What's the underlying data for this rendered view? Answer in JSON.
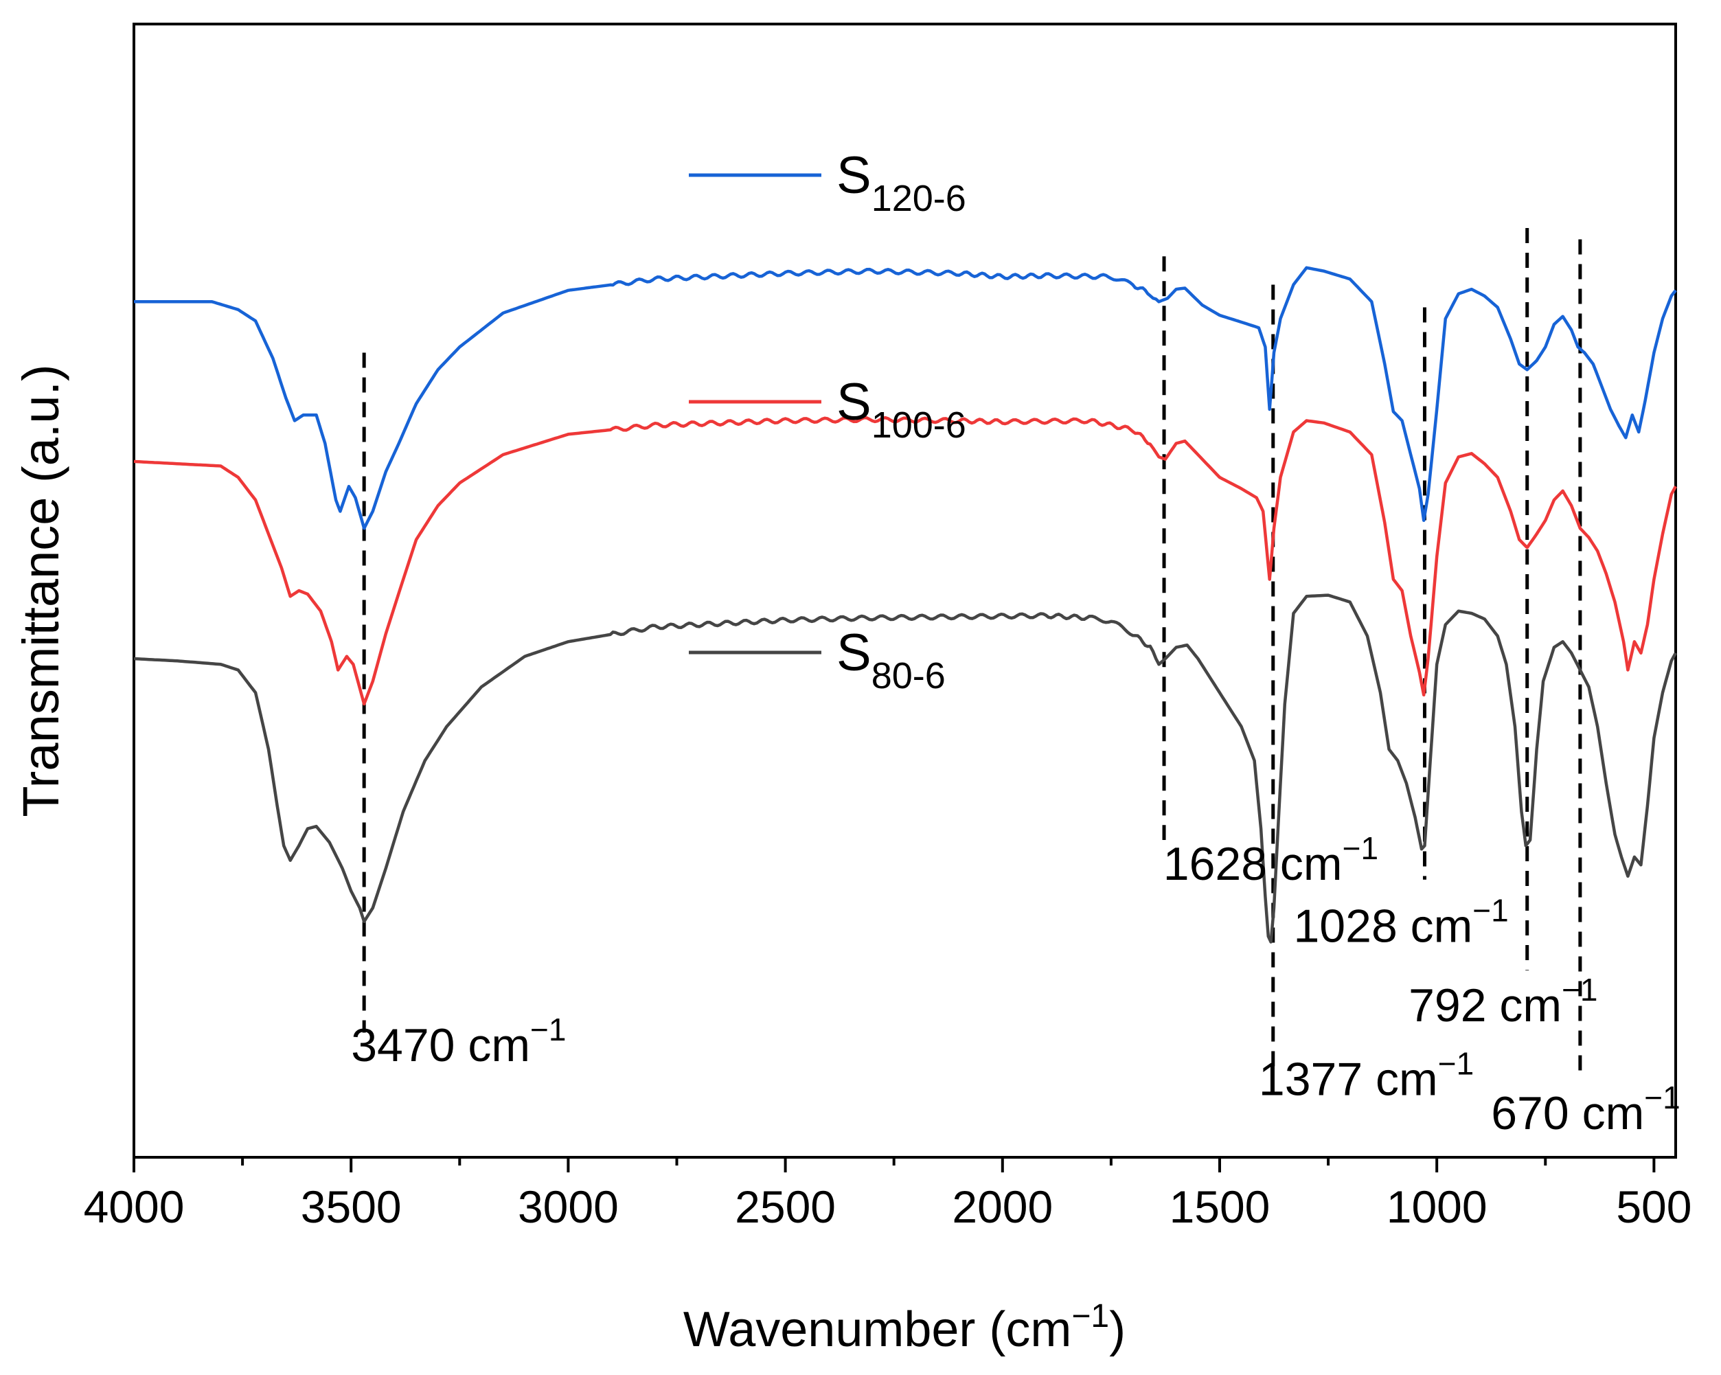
{
  "chart_data": {
    "type": "line",
    "title": "",
    "xlabel": "Wavenumber (cm⁻¹)",
    "xlabel_main": "Wavenumber (cm",
    "xlabel_sup": "−1",
    "xlabel_close": ")",
    "ylabel": "Transmittance (a.u.)",
    "xlim": [
      4000,
      450
    ],
    "x_reversed": true,
    "ylim": [
      0,
      10
    ],
    "y_ticks_shown": false,
    "grid": false,
    "x_ticks": [
      4000,
      3500,
      3000,
      2500,
      2000,
      1500,
      1000,
      500
    ],
    "x_tick_labels": [
      "4000",
      "3500",
      "3000",
      "2500",
      "2000",
      "1500",
      "1000",
      "500"
    ],
    "legend_position": "top-center",
    "series": [
      {
        "name": "S120-6",
        "label_main": "S",
        "label_sub": "120-6",
        "color": "#1763d6",
        "points": [
          [
            4000,
            7.55
          ],
          [
            3900,
            7.55
          ],
          [
            3820,
            7.55
          ],
          [
            3760,
            7.48
          ],
          [
            3720,
            7.38
          ],
          [
            3680,
            7.05
          ],
          [
            3650,
            6.7
          ],
          [
            3630,
            6.5
          ],
          [
            3610,
            6.55
          ],
          [
            3580,
            6.55
          ],
          [
            3560,
            6.3
          ],
          [
            3535,
            5.8
          ],
          [
            3525,
            5.7
          ],
          [
            3505,
            5.92
          ],
          [
            3490,
            5.82
          ],
          [
            3470,
            5.55
          ],
          [
            3450,
            5.7
          ],
          [
            3420,
            6.05
          ],
          [
            3390,
            6.3
          ],
          [
            3350,
            6.65
          ],
          [
            3300,
            6.95
          ],
          [
            3250,
            7.15
          ],
          [
            3150,
            7.45
          ],
          [
            3000,
            7.65
          ],
          [
            2800,
            7.75
          ],
          [
            2500,
            7.8
          ],
          [
            2300,
            7.82
          ],
          [
            2100,
            7.8
          ],
          [
            2000,
            7.77
          ],
          [
            1900,
            7.78
          ],
          [
            1750,
            7.77
          ],
          [
            1700,
            7.7
          ],
          [
            1660,
            7.62
          ],
          [
            1640,
            7.55
          ],
          [
            1620,
            7.58
          ],
          [
            1600,
            7.66
          ],
          [
            1580,
            7.67
          ],
          [
            1540,
            7.52
          ],
          [
            1500,
            7.43
          ],
          [
            1450,
            7.37
          ],
          [
            1410,
            7.32
          ],
          [
            1395,
            7.15
          ],
          [
            1385,
            6.6
          ],
          [
            1375,
            7.1
          ],
          [
            1360,
            7.4
          ],
          [
            1330,
            7.7
          ],
          [
            1300,
            7.85
          ],
          [
            1260,
            7.82
          ],
          [
            1200,
            7.75
          ],
          [
            1150,
            7.55
          ],
          [
            1120,
            7.0
          ],
          [
            1100,
            6.58
          ],
          [
            1080,
            6.5
          ],
          [
            1060,
            6.2
          ],
          [
            1040,
            5.9
          ],
          [
            1030,
            5.62
          ],
          [
            1020,
            5.85
          ],
          [
            1000,
            6.6
          ],
          [
            980,
            7.4
          ],
          [
            950,
            7.62
          ],
          [
            920,
            7.66
          ],
          [
            890,
            7.6
          ],
          [
            860,
            7.5
          ],
          [
            830,
            7.22
          ],
          [
            810,
            7.0
          ],
          [
            792,
            6.95
          ],
          [
            770,
            7.03
          ],
          [
            750,
            7.15
          ],
          [
            730,
            7.35
          ],
          [
            710,
            7.42
          ],
          [
            690,
            7.3
          ],
          [
            675,
            7.15
          ],
          [
            660,
            7.1
          ],
          [
            640,
            7.0
          ],
          [
            620,
            6.8
          ],
          [
            600,
            6.6
          ],
          [
            580,
            6.45
          ],
          [
            565,
            6.35
          ],
          [
            550,
            6.55
          ],
          [
            535,
            6.4
          ],
          [
            520,
            6.68
          ],
          [
            500,
            7.1
          ],
          [
            480,
            7.4
          ],
          [
            460,
            7.6
          ],
          [
            450,
            7.65
          ]
        ]
      },
      {
        "name": "S100-6",
        "label_main": "S",
        "label_sub": "100-6",
        "color": "#ee3838",
        "points": [
          [
            4000,
            6.14
          ],
          [
            3900,
            6.12
          ],
          [
            3800,
            6.1
          ],
          [
            3760,
            6.0
          ],
          [
            3720,
            5.8
          ],
          [
            3690,
            5.5
          ],
          [
            3660,
            5.2
          ],
          [
            3640,
            4.95
          ],
          [
            3620,
            5.0
          ],
          [
            3600,
            4.97
          ],
          [
            3570,
            4.82
          ],
          [
            3545,
            4.55
          ],
          [
            3530,
            4.3
          ],
          [
            3510,
            4.42
          ],
          [
            3495,
            4.35
          ],
          [
            3470,
            4.0
          ],
          [
            3450,
            4.2
          ],
          [
            3420,
            4.62
          ],
          [
            3390,
            4.98
          ],
          [
            3350,
            5.45
          ],
          [
            3300,
            5.75
          ],
          [
            3250,
            5.95
          ],
          [
            3150,
            6.2
          ],
          [
            3000,
            6.38
          ],
          [
            2800,
            6.46
          ],
          [
            2500,
            6.5
          ],
          [
            2300,
            6.51
          ],
          [
            2100,
            6.5
          ],
          [
            2000,
            6.49
          ],
          [
            1800,
            6.5
          ],
          [
            1700,
            6.42
          ],
          [
            1660,
            6.3
          ],
          [
            1640,
            6.18
          ],
          [
            1625,
            6.16
          ],
          [
            1600,
            6.3
          ],
          [
            1580,
            6.32
          ],
          [
            1550,
            6.2
          ],
          [
            1500,
            6.0
          ],
          [
            1450,
            5.9
          ],
          [
            1415,
            5.82
          ],
          [
            1400,
            5.7
          ],
          [
            1385,
            5.1
          ],
          [
            1375,
            5.55
          ],
          [
            1360,
            6.0
          ],
          [
            1330,
            6.4
          ],
          [
            1300,
            6.5
          ],
          [
            1260,
            6.48
          ],
          [
            1200,
            6.4
          ],
          [
            1150,
            6.2
          ],
          [
            1120,
            5.6
          ],
          [
            1100,
            5.1
          ],
          [
            1080,
            5.0
          ],
          [
            1060,
            4.6
          ],
          [
            1040,
            4.28
          ],
          [
            1030,
            4.08
          ],
          [
            1020,
            4.4
          ],
          [
            1000,
            5.3
          ],
          [
            980,
            5.95
          ],
          [
            950,
            6.18
          ],
          [
            920,
            6.21
          ],
          [
            890,
            6.12
          ],
          [
            860,
            6.0
          ],
          [
            830,
            5.7
          ],
          [
            810,
            5.45
          ],
          [
            792,
            5.38
          ],
          [
            770,
            5.5
          ],
          [
            750,
            5.62
          ],
          [
            730,
            5.8
          ],
          [
            710,
            5.88
          ],
          [
            690,
            5.75
          ],
          [
            670,
            5.55
          ],
          [
            650,
            5.47
          ],
          [
            630,
            5.35
          ],
          [
            610,
            5.15
          ],
          [
            590,
            4.9
          ],
          [
            570,
            4.55
          ],
          [
            560,
            4.3
          ],
          [
            545,
            4.55
          ],
          [
            530,
            4.45
          ],
          [
            515,
            4.7
          ],
          [
            500,
            5.1
          ],
          [
            480,
            5.5
          ],
          [
            460,
            5.85
          ],
          [
            450,
            5.92
          ]
        ]
      },
      {
        "name": "S80-6",
        "label_main": "S",
        "label_sub": "80-6",
        "color": "#454545",
        "points": [
          [
            4000,
            4.4
          ],
          [
            3900,
            4.38
          ],
          [
            3800,
            4.35
          ],
          [
            3760,
            4.3
          ],
          [
            3720,
            4.1
          ],
          [
            3690,
            3.6
          ],
          [
            3670,
            3.1
          ],
          [
            3655,
            2.75
          ],
          [
            3640,
            2.62
          ],
          [
            3620,
            2.75
          ],
          [
            3600,
            2.9
          ],
          [
            3580,
            2.92
          ],
          [
            3550,
            2.78
          ],
          [
            3520,
            2.55
          ],
          [
            3500,
            2.35
          ],
          [
            3480,
            2.2
          ],
          [
            3470,
            2.08
          ],
          [
            3450,
            2.2
          ],
          [
            3420,
            2.55
          ],
          [
            3380,
            3.05
          ],
          [
            3330,
            3.5
          ],
          [
            3280,
            3.8
          ],
          [
            3200,
            4.15
          ],
          [
            3100,
            4.42
          ],
          [
            3000,
            4.55
          ],
          [
            2800,
            4.68
          ],
          [
            2500,
            4.74
          ],
          [
            2300,
            4.76
          ],
          [
            2100,
            4.77
          ],
          [
            1900,
            4.78
          ],
          [
            1800,
            4.76
          ],
          [
            1750,
            4.73
          ],
          [
            1700,
            4.62
          ],
          [
            1660,
            4.5
          ],
          [
            1640,
            4.35
          ],
          [
            1625,
            4.4
          ],
          [
            1600,
            4.5
          ],
          [
            1575,
            4.52
          ],
          [
            1550,
            4.4
          ],
          [
            1500,
            4.1
          ],
          [
            1450,
            3.8
          ],
          [
            1420,
            3.5
          ],
          [
            1405,
            2.9
          ],
          [
            1395,
            2.3
          ],
          [
            1388,
            1.95
          ],
          [
            1382,
            1.9
          ],
          [
            1375,
            2.2
          ],
          [
            1365,
            2.95
          ],
          [
            1350,
            4.0
          ],
          [
            1330,
            4.8
          ],
          [
            1300,
            4.95
          ],
          [
            1250,
            4.96
          ],
          [
            1200,
            4.9
          ],
          [
            1160,
            4.6
          ],
          [
            1130,
            4.1
          ],
          [
            1110,
            3.6
          ],
          [
            1090,
            3.5
          ],
          [
            1070,
            3.3
          ],
          [
            1050,
            3.0
          ],
          [
            1035,
            2.72
          ],
          [
            1028,
            2.75
          ],
          [
            1015,
            3.5
          ],
          [
            1000,
            4.35
          ],
          [
            980,
            4.7
          ],
          [
            950,
            4.82
          ],
          [
            920,
            4.8
          ],
          [
            890,
            4.75
          ],
          [
            860,
            4.6
          ],
          [
            840,
            4.35
          ],
          [
            820,
            3.8
          ],
          [
            805,
            3.05
          ],
          [
            795,
            2.75
          ],
          [
            785,
            2.8
          ],
          [
            770,
            3.6
          ],
          [
            755,
            4.2
          ],
          [
            730,
            4.5
          ],
          [
            710,
            4.55
          ],
          [
            690,
            4.45
          ],
          [
            670,
            4.3
          ],
          [
            650,
            4.15
          ],
          [
            630,
            3.8
          ],
          [
            610,
            3.3
          ],
          [
            590,
            2.85
          ],
          [
            575,
            2.65
          ],
          [
            560,
            2.48
          ],
          [
            545,
            2.65
          ],
          [
            530,
            2.58
          ],
          [
            515,
            3.1
          ],
          [
            500,
            3.7
          ],
          [
            480,
            4.1
          ],
          [
            460,
            4.38
          ],
          [
            450,
            4.45
          ]
        ]
      }
    ],
    "annotations": [
      {
        "x": 3470,
        "y_top": 7.1,
        "y_bottom": 1.1,
        "label": "3470 cm",
        "sup": "−1",
        "label_x": 3500,
        "label_y": 0.85
      },
      {
        "x": 1628,
        "y_top": 7.95,
        "y_bottom": 2.8,
        "label": "1628 cm",
        "sup": "−1",
        "label_x": 1630,
        "label_y": 2.45
      },
      {
        "x": 1377,
        "y_top": 7.7,
        "y_bottom": 0.75,
        "label": "1377 cm",
        "sup": "−1",
        "label_x": 1410,
        "label_y": 0.55
      },
      {
        "x": 1028,
        "y_top": 7.5,
        "y_bottom": 2.45,
        "label": "1028 cm",
        "sup": "−1",
        "label_x": 1330,
        "label_y": 1.9
      },
      {
        "x": 792,
        "y_top": 8.2,
        "y_bottom": 1.65,
        "label": "792 cm",
        "sup": "−1",
        "label_x": 1065,
        "label_y": 1.2
      },
      {
        "x": 670,
        "y_top": 8.1,
        "y_bottom": 0.7,
        "label": "670 cm",
        "sup": "−1",
        "label_x": 875,
        "label_y": 0.25
      }
    ]
  }
}
